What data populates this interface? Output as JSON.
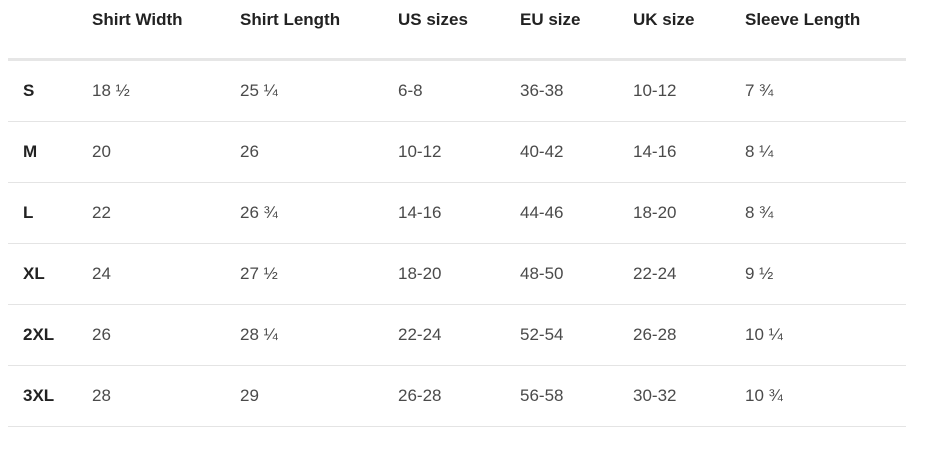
{
  "table": {
    "headers": [
      "",
      "Shirt Width",
      "Shirt Length",
      "US sizes",
      "EU size",
      "UK size",
      "Sleeve Length"
    ],
    "rows": [
      [
        "S",
        "18 ½",
        "25 ¼",
        "6-8",
        "36-38",
        "10-12",
        "7 ¾"
      ],
      [
        "M",
        "20",
        "26",
        "10-12",
        "40-42",
        "14-16",
        "8 ¼"
      ],
      [
        "L",
        "22",
        "26 ¾",
        "14-16",
        "44-46",
        "18-20",
        "8 ¾"
      ],
      [
        "XL",
        "24",
        "27 ½",
        "18-20",
        "48-50",
        "22-24",
        "9 ½"
      ],
      [
        "2XL",
        "26",
        "28 ¼",
        "22-24",
        "52-54",
        "26-28",
        "10 ¼"
      ],
      [
        "3XL",
        "28",
        "29",
        "26-28",
        "56-58",
        "30-32",
        "10 ¾"
      ]
    ]
  }
}
